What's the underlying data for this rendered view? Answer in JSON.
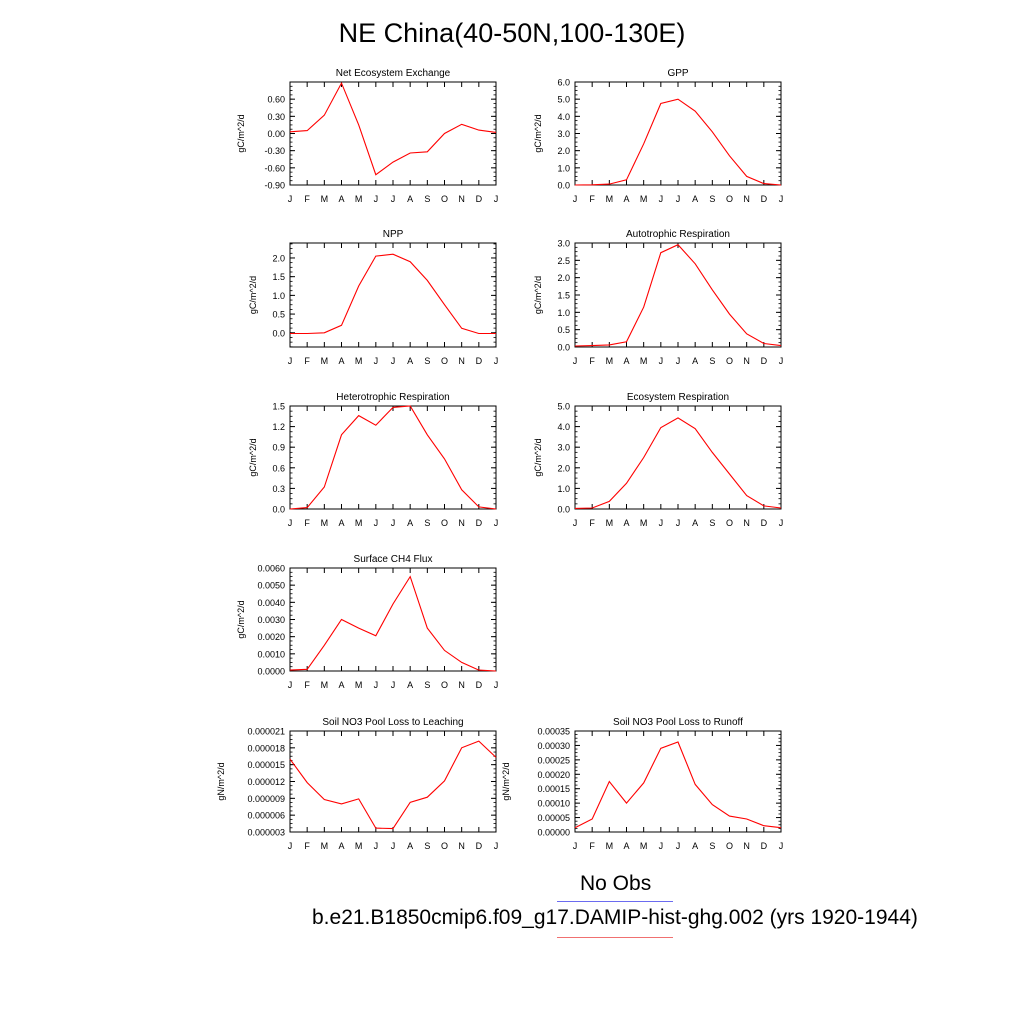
{
  "figure": {
    "title": "NE China(40-50N,100-130E)",
    "legend": {
      "obs_label": "No Obs",
      "obs_color": "#6b6bf0",
      "case_label": "b.e21.B1850cmip6.f09_g17.DAMIP-hist-ghg.002 (yrs 1920-1944)",
      "case_color": "#f07070"
    },
    "line_color": "#ff0000"
  },
  "chart_data": [
    {
      "type": "line",
      "title": "Net Ecosystem Exchange",
      "ylabel": "gC/m^2/d",
      "categories": [
        "J",
        "F",
        "M",
        "A",
        "M",
        "J",
        "J",
        "A",
        "S",
        "O",
        "N",
        "D",
        "J"
      ],
      "values": [
        0.03,
        0.05,
        0.32,
        0.88,
        0.15,
        -0.72,
        -0.5,
        -0.34,
        -0.32,
        0.0,
        0.16,
        0.06,
        0.02
      ],
      "ylim": [
        -0.9,
        0.9
      ],
      "yticks": [
        -0.9,
        -0.6,
        -0.3,
        0.0,
        0.3,
        0.6
      ],
      "yticklabels": [
        "-0.90",
        "-0.60",
        "-0.30",
        "0.00",
        "0.30",
        "0.60"
      ]
    },
    {
      "type": "line",
      "title": "GPP",
      "ylabel": "gC/m^2/d",
      "categories": [
        "J",
        "F",
        "M",
        "A",
        "M",
        "J",
        "J",
        "A",
        "S",
        "O",
        "N",
        "D",
        "J"
      ],
      "values": [
        0.0,
        0.01,
        0.05,
        0.3,
        2.4,
        4.75,
        5.0,
        4.3,
        3.1,
        1.7,
        0.5,
        0.08,
        0.0
      ],
      "ylim": [
        0.0,
        6.0
      ],
      "yticks": [
        0.0,
        1.0,
        2.0,
        3.0,
        4.0,
        5.0,
        6.0
      ],
      "yticklabels": [
        "0.0",
        "1.0",
        "2.0",
        "3.0",
        "4.0",
        "5.0",
        "6.0"
      ]
    },
    {
      "type": "line",
      "title": "NPP",
      "ylabel": "gC/m^2/d",
      "categories": [
        "J",
        "F",
        "M",
        "A",
        "M",
        "J",
        "J",
        "A",
        "S",
        "O",
        "N",
        "D",
        "J"
      ],
      "values": [
        -0.02,
        -0.02,
        0.0,
        0.2,
        1.25,
        2.05,
        2.1,
        1.9,
        1.4,
        0.75,
        0.12,
        -0.02,
        -0.02
      ],
      "ylim": [
        -0.38,
        2.4
      ],
      "yticks": [
        0.0,
        0.5,
        1.0,
        1.5,
        2.0
      ],
      "yticklabels": [
        "0.0",
        "0.5",
        "1.0",
        "1.5",
        "2.0"
      ]
    },
    {
      "type": "line",
      "title": "Autotrophic Respiration",
      "ylabel": "gC/m^2/d",
      "categories": [
        "J",
        "F",
        "M",
        "A",
        "M",
        "J",
        "J",
        "A",
        "S",
        "O",
        "N",
        "D",
        "J"
      ],
      "values": [
        0.03,
        0.04,
        0.06,
        0.15,
        1.15,
        2.72,
        2.95,
        2.4,
        1.65,
        0.95,
        0.38,
        0.1,
        0.04
      ],
      "ylim": [
        0.0,
        3.0
      ],
      "yticks": [
        0.0,
        0.5,
        1.0,
        1.5,
        2.0,
        2.5,
        3.0
      ],
      "yticklabels": [
        "0.0",
        "0.5",
        "1.0",
        "1.5",
        "2.0",
        "2.5",
        "3.0"
      ]
    },
    {
      "type": "line",
      "title": "Heterotrophic Respiration",
      "ylabel": "gC/m^2/d",
      "categories": [
        "J",
        "F",
        "M",
        "A",
        "M",
        "J",
        "J",
        "A",
        "S",
        "O",
        "N",
        "D",
        "J"
      ],
      "values": [
        0.0,
        0.02,
        0.32,
        1.08,
        1.36,
        1.22,
        1.48,
        1.5,
        1.08,
        0.73,
        0.28,
        0.03,
        0.0
      ],
      "ylim": [
        0.0,
        1.5
      ],
      "yticks": [
        0.0,
        0.3,
        0.6,
        0.9,
        1.2,
        1.5
      ],
      "yticklabels": [
        "0.0",
        "0.3",
        "0.6",
        "0.9",
        "1.2",
        "1.5"
      ]
    },
    {
      "type": "line",
      "title": "Ecosystem Respiration",
      "ylabel": "gC/m^2/d",
      "categories": [
        "J",
        "F",
        "M",
        "A",
        "M",
        "J",
        "J",
        "A",
        "S",
        "O",
        "N",
        "D",
        "J"
      ],
      "values": [
        0.03,
        0.05,
        0.37,
        1.25,
        2.5,
        3.95,
        4.42,
        3.9,
        2.75,
        1.7,
        0.65,
        0.15,
        0.05
      ],
      "ylim": [
        0.0,
        5.0
      ],
      "yticks": [
        0.0,
        1.0,
        2.0,
        3.0,
        4.0,
        5.0
      ],
      "yticklabels": [
        "0.0",
        "1.0",
        "2.0",
        "3.0",
        "4.0",
        "5.0"
      ]
    },
    {
      "type": "line",
      "title": "Surface CH4 Flux",
      "ylabel": "gC/m^2/d",
      "categories": [
        "J",
        "F",
        "M",
        "A",
        "M",
        "J",
        "J",
        "A",
        "S",
        "O",
        "N",
        "D",
        "J"
      ],
      "values": [
        5e-05,
        0.0001,
        0.0015,
        0.003,
        0.0025,
        0.00205,
        0.0039,
        0.0055,
        0.0025,
        0.0012,
        0.0005,
        5e-05,
        0.0
      ],
      "ylim": [
        0.0,
        0.006
      ],
      "yticks": [
        0.0,
        0.001,
        0.002,
        0.003,
        0.004,
        0.005,
        0.006
      ],
      "yticklabels": [
        "0.0000",
        "0.0010",
        "0.0020",
        "0.0030",
        "0.0040",
        "0.0050",
        "0.0060"
      ]
    },
    {
      "type": "line",
      "title": "Soil NO3 Pool Loss to Leaching",
      "ylabel": "gN/m^2/d",
      "categories": [
        "J",
        "F",
        "M",
        "A",
        "M",
        "J",
        "J",
        "A",
        "S",
        "O",
        "N",
        "D",
        "J"
      ],
      "values": [
        1.6e-05,
        1.18e-05,
        8.8e-06,
        8e-06,
        8.9e-06,
        3.7e-06,
        3.6e-06,
        8.3e-06,
        9.2e-06,
        1.21e-05,
        1.8e-05,
        1.92e-05,
        1.63e-05
      ],
      "ylim": [
        3e-06,
        2.1e-05
      ],
      "yticks": [
        3e-06,
        6e-06,
        9e-06,
        1.2e-05,
        1.5e-05,
        1.8e-05,
        2.1e-05
      ],
      "yticklabels": [
        "0.000003",
        "0.000006",
        "0.000009",
        "0.000012",
        "0.000015",
        "0.000018",
        "0.000021"
      ]
    },
    {
      "type": "line",
      "title": "Soil NO3 Pool Loss to Runoff",
      "ylabel": "gN/m^2/d",
      "categories": [
        "J",
        "F",
        "M",
        "A",
        "M",
        "J",
        "J",
        "A",
        "S",
        "O",
        "N",
        "D",
        "J"
      ],
      "values": [
        1.5e-05,
        4.5e-05,
        0.000175,
        0.0001,
        0.00017,
        0.00029,
        0.000312,
        0.000165,
        9.5e-05,
        5.5e-05,
        4.5e-05,
        2.2e-05,
        1.5e-05
      ],
      "ylim": [
        0.0,
        0.00035
      ],
      "yticks": [
        0.0,
        5e-05,
        0.0001,
        0.00015,
        0.0002,
        0.00025,
        0.0003,
        0.00035
      ],
      "yticklabels": [
        "0.00000",
        "0.00005",
        "0.00010",
        "0.00015",
        "0.00020",
        "0.00025",
        "0.00030",
        "0.00035"
      ]
    }
  ]
}
